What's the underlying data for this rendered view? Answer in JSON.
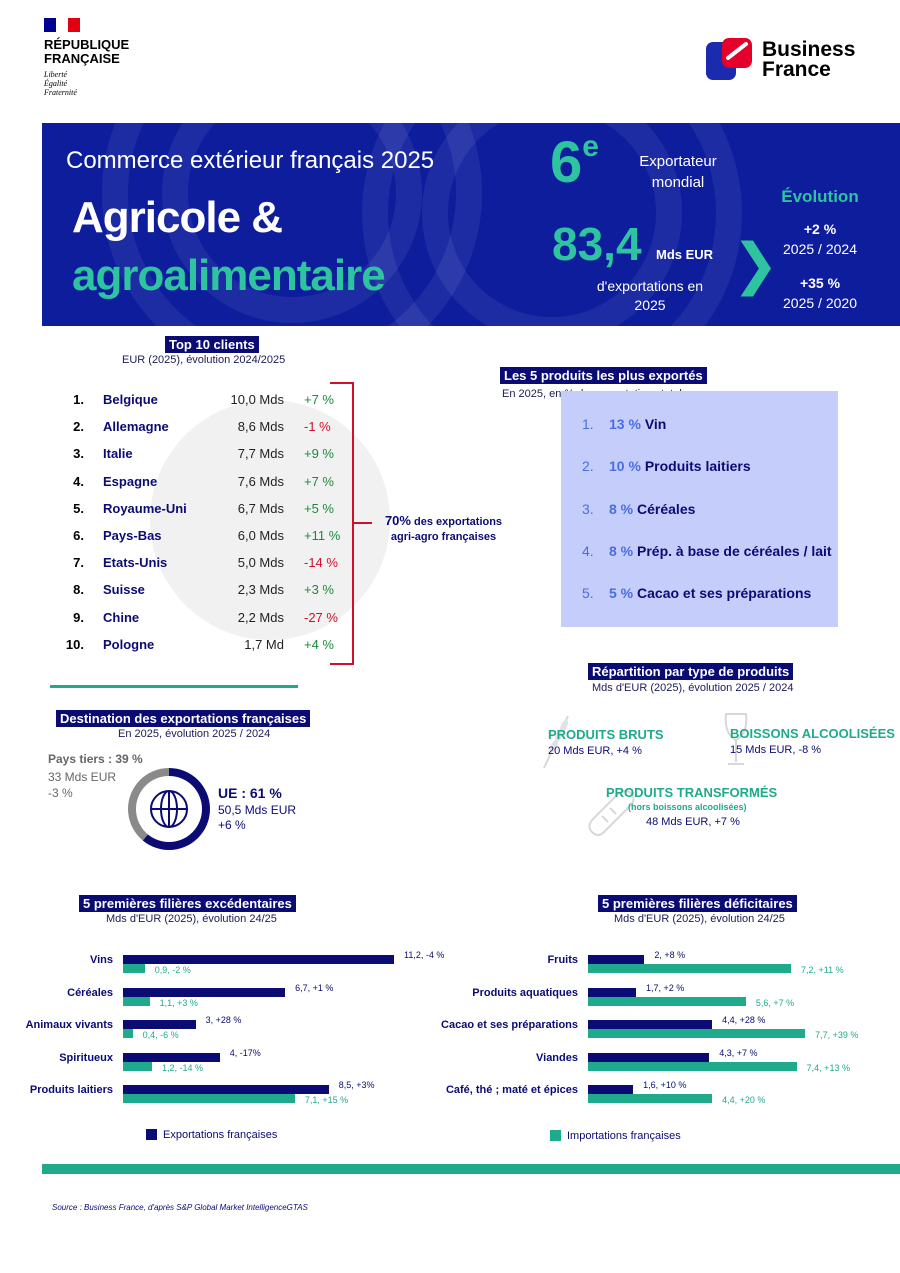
{
  "header": {
    "republique_line1": "RÉPUBLIQUE",
    "republique_line2": "FRANÇAISE",
    "motto": [
      "Liberté",
      "Égalité",
      "Fraternité"
    ],
    "bf_line1": "Business",
    "bf_line2": "France",
    "colors": {
      "navy": "#0b0b74",
      "teal": "#1faa8c",
      "banner": "#0d1d9c",
      "red": "#d0102b"
    }
  },
  "banner": {
    "subtitle": "Commerce extérieur français 2025",
    "title_line1": "Agricole &",
    "title_line2": "agroalimentaire",
    "rank": "6",
    "rank_sup": "e",
    "rank_label_line1": "Exportateur",
    "rank_label_line2": "mondial",
    "exports_value": "83,4",
    "exports_unit": "Mds EUR",
    "exports_label_line1": "d'exportations en",
    "exports_label_line2": "2025",
    "evolution_title": "Évolution",
    "evolution": [
      {
        "value": "+2 %",
        "period": "2025 / 2024"
      },
      {
        "value": "+35 %",
        "period": "2025 / 2020"
      }
    ]
  },
  "top_clients": {
    "title": "Top 10 clients",
    "subtitle": "EUR (2025), évolution 2024/2025",
    "rows": [
      {
        "rank": "1.",
        "country": "Belgique",
        "value": "10,0 Mds",
        "evo": "+7 %",
        "trend": "up"
      },
      {
        "rank": "2.",
        "country": "Allemagne",
        "value": "8,6 Mds",
        "evo": "-1 %",
        "trend": "down"
      },
      {
        "rank": "3.",
        "country": "Italie",
        "value": "7,7 Mds",
        "evo": "+9 %",
        "trend": "up"
      },
      {
        "rank": "4.",
        "country": "Espagne",
        "value": "7,6 Mds",
        "evo": "+7 %",
        "trend": "up"
      },
      {
        "rank": "5.",
        "country": "Royaume-Uni",
        "value": "6,7 Mds",
        "evo": "+5 %",
        "trend": "up"
      },
      {
        "rank": "6.",
        "country": "Pays-Bas",
        "value": "6,0 Mds",
        "evo": "+11 %",
        "trend": "up"
      },
      {
        "rank": "7.",
        "country": "Etats-Unis",
        "value": "5,0 Mds",
        "evo": "-14 %",
        "trend": "down"
      },
      {
        "rank": "8.",
        "country": "Suisse",
        "value": "2,3 Mds",
        "evo": "+3 %",
        "trend": "up"
      },
      {
        "rank": "9.",
        "country": "Chine",
        "value": "2,2 Mds",
        "evo": "-27 %",
        "trend": "down"
      },
      {
        "rank": "10.",
        "country": "Pologne",
        "value": "1,7 Md",
        "evo": "+4 %",
        "trend": "up"
      }
    ],
    "share_pct": "70%",
    "share_text1": "des exportations",
    "share_text2": "agri-agro françaises"
  },
  "top_products": {
    "title": "Les 5 produits les plus exportés",
    "subtitle": "En 2025, en % des exportations totales",
    "items": [
      {
        "n": "1.",
        "pct": "13 %",
        "label": "Vin"
      },
      {
        "n": "2.",
        "pct": "10 %",
        "label": "Produits laitiers"
      },
      {
        "n": "3.",
        "pct": "8 %",
        "label": "Céréales"
      },
      {
        "n": "4.",
        "pct": "8 %",
        "label": "Prép. à base de céréales / lait"
      },
      {
        "n": "5.",
        "pct": "5 %",
        "label": "Cacao et ses préparations"
      }
    ]
  },
  "destination": {
    "title": "Destination des exportations françaises",
    "subtitle": "En 2025, évolution 2025 / 2024",
    "tiers_title": "Pays tiers : 39 %",
    "tiers_value": "33 Mds EUR",
    "tiers_evo": "-3 %",
    "ue_title": "UE : 61 %",
    "ue_value": "50,5 Mds EUR",
    "ue_evo": "+6 %",
    "ue_share": 61
  },
  "repartition": {
    "title": "Répartition par type de produits",
    "subtitle": "Mds d'EUR (2025), évolution 2025 / 2024",
    "bruts_title": "PRODUITS BRUTS",
    "bruts_value": "20 Mds EUR, +4 %",
    "boissons_title": "BOISSONS ALCOOLISÉES",
    "boissons_value": "15 Mds EUR, -8 %",
    "transformes_title": "PRODUITS TRANSFORMÉS",
    "transformes_note": "(hors boissons alcoolisées)",
    "transformes_value": "48 Mds EUR, +7 %",
    "icons": [
      "wheat-icon",
      "wine-glass-icon",
      "bread-icon"
    ]
  },
  "chart_data": [
    {
      "type": "bar",
      "title": "5 premières filières excédentaires",
      "subtitle": "Mds d'EUR (2025), évolution 24/25",
      "categories": [
        "Vins",
        "Céréales",
        "Animaux vivants",
        "Spiritueux",
        "Produits laitiers"
      ],
      "series": [
        {
          "name": "Exportations françaises",
          "values": [
            11.2,
            6.7,
            3,
            4,
            8.5
          ],
          "labels": [
            "11,2, -4 %",
            "6,7, +1 %",
            "3, +28 %",
            "4, -17%",
            "8,5, +3%"
          ]
        },
        {
          "name": "Importations françaises",
          "values": [
            0.9,
            1.1,
            0.4,
            1.2,
            7.1
          ],
          "labels": [
            "0,9, -2 %",
            "1,1, +3 %",
            "0,4, -6 %",
            "1,2, -14 %",
            "7,1, +15 %"
          ]
        }
      ],
      "ylim": [
        0,
        11.2
      ]
    },
    {
      "type": "bar",
      "title": "5 premières filières déficitaires",
      "subtitle": "Mds d'EUR (2025), évolution 24/25",
      "categories": [
        "Fruits",
        "Produits aquatiques",
        "Cacao et ses préparations",
        "Viandes",
        "Café, thé ; maté et épices"
      ],
      "series": [
        {
          "name": "Exportations françaises",
          "values": [
            2,
            1.7,
            4.4,
            4.3,
            1.6
          ],
          "labels": [
            "2, +8 %",
            "1,7, +2 %",
            "4,4, +28 %",
            "4,3, +7 %",
            "1,6, +10 %"
          ]
        },
        {
          "name": "Importations françaises",
          "values": [
            7.2,
            5.6,
            7.7,
            7.4,
            4.4
          ],
          "labels": [
            "7,2, +11 %",
            "5,6, +7 %",
            "7,7, +39 %",
            "7,4, +13 %",
            "4,4, +20 %"
          ]
        }
      ],
      "ylim": [
        0,
        7.7
      ]
    }
  ],
  "legend": {
    "exports": "Exportations françaises",
    "imports": "Importations françaises"
  },
  "source": "Source : Business France, d'après S&P Global Market IntelligenceGTAS"
}
